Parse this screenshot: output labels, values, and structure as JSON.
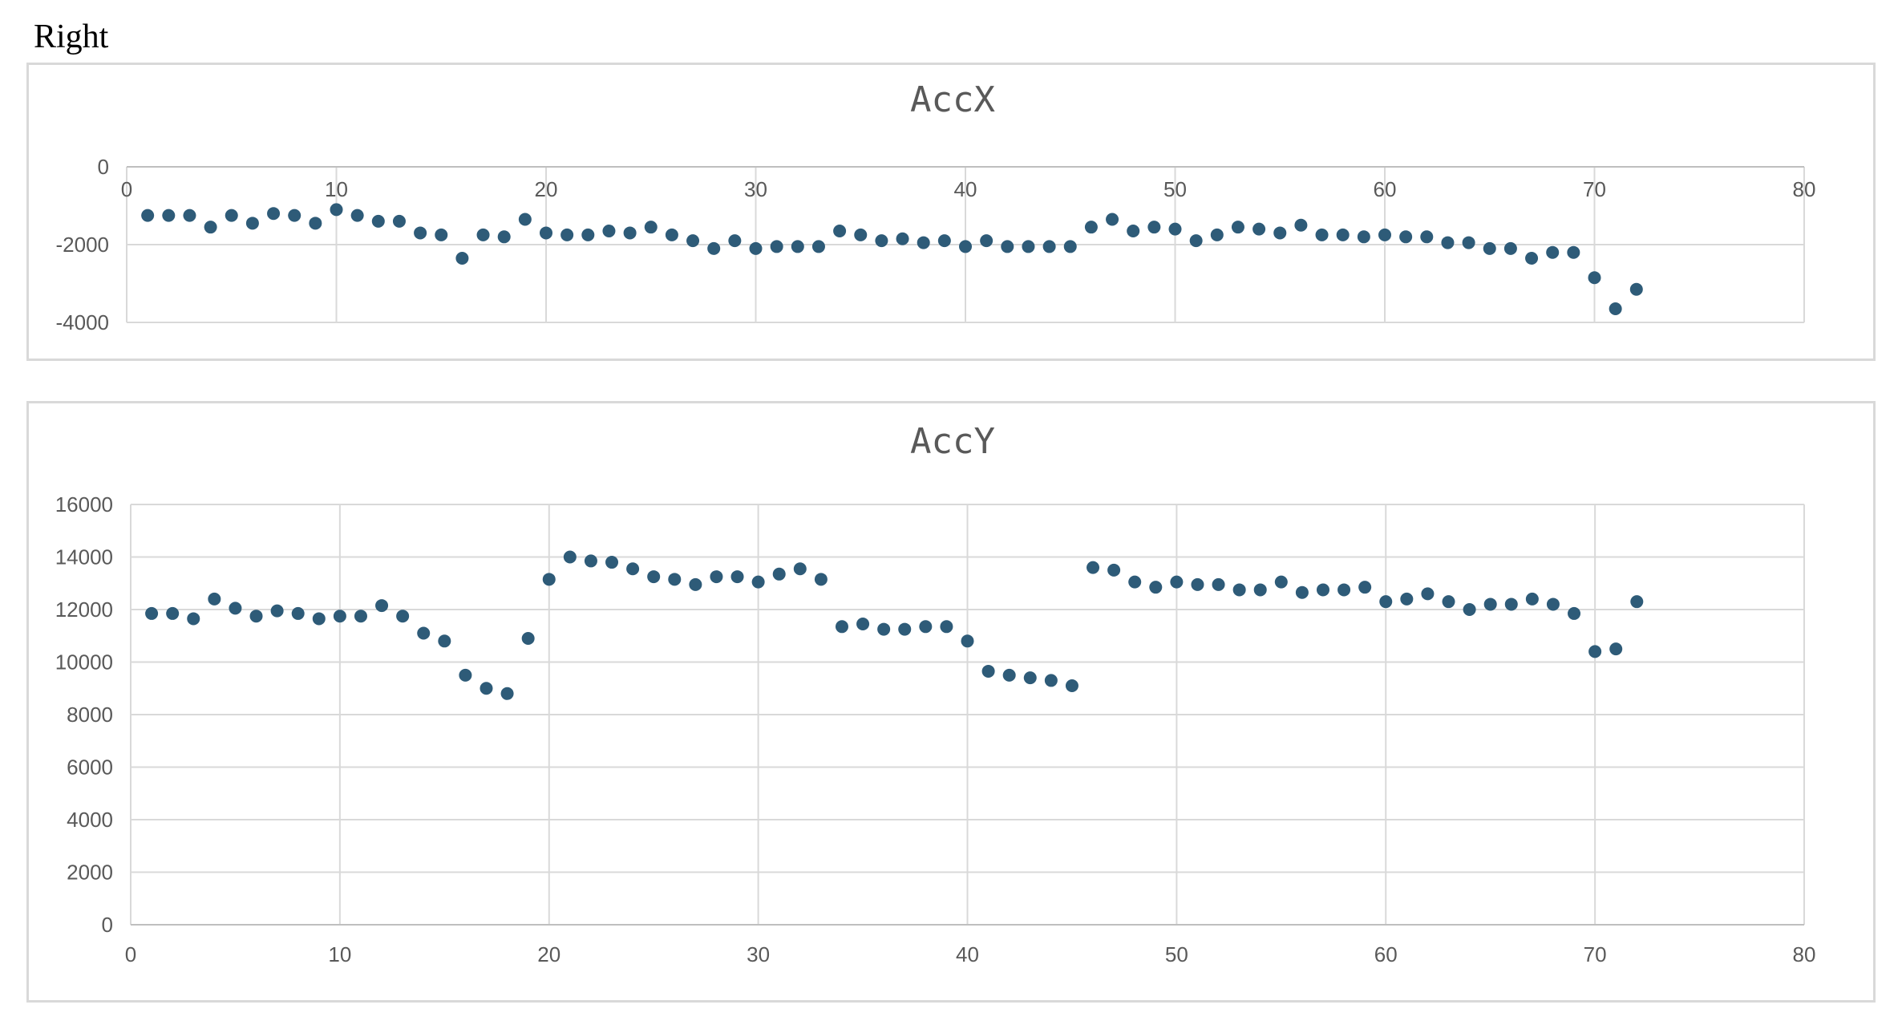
{
  "heading": "Right",
  "colors": {
    "marker": "#2e5b78",
    "grid": "#d9d9d9",
    "text": "#595959"
  },
  "chart_data": [
    {
      "type": "scatter",
      "title": "AccX",
      "xlim": [
        0,
        80
      ],
      "ylim": [
        -4000,
        0
      ],
      "x_ticks": [
        0,
        10,
        20,
        30,
        40,
        50,
        60,
        70,
        80
      ],
      "y_ticks": [
        0,
        -2000,
        -4000
      ],
      "x_axis_at_top": true,
      "grid": true,
      "series": [
        {
          "x": [
            1,
            2,
            3,
            4,
            5,
            6,
            7,
            8,
            9,
            10,
            11,
            12,
            13,
            14,
            15,
            16,
            17,
            18,
            19,
            20,
            21,
            22,
            23,
            24,
            25,
            26,
            27,
            28,
            29,
            30,
            31,
            32,
            33,
            34,
            35,
            36,
            37,
            38,
            39,
            40,
            41,
            42,
            43,
            44,
            45,
            46,
            47,
            48,
            49,
            50,
            51,
            52,
            53,
            54,
            55,
            56,
            57,
            58,
            59,
            60,
            61,
            62,
            63,
            64,
            65,
            66,
            67,
            68,
            69,
            70,
            71,
            72
          ],
          "y": [
            -1250,
            -1250,
            -1250,
            -1550,
            -1250,
            -1450,
            -1200,
            -1250,
            -1450,
            -1100,
            -1250,
            -1400,
            -1400,
            -1700,
            -1750,
            -2350,
            -1750,
            -1800,
            -1350,
            -1700,
            -1750,
            -1750,
            -1650,
            -1700,
            -1550,
            -1750,
            -1900,
            -2100,
            -1900,
            -2100,
            -2050,
            -2050,
            -2050,
            -1650,
            -1750,
            -1900,
            -1850,
            -1950,
            -1900,
            -2050,
            -1900,
            -2050,
            -2050,
            -2050,
            -2050,
            -1550,
            -1350,
            -1650,
            -1550,
            -1600,
            -1900,
            -1750,
            -1550,
            -1600,
            -1700,
            -1500,
            -1750,
            -1750,
            -1800,
            -1750,
            -1800,
            -1800,
            -1950,
            -1950,
            -2100,
            -2100,
            -2350,
            -2200,
            -2200,
            -2850,
            -3650,
            -3150
          ]
        }
      ]
    },
    {
      "type": "scatter",
      "title": "AccY",
      "xlim": [
        0,
        80
      ],
      "ylim": [
        0,
        16000
      ],
      "x_ticks": [
        0,
        10,
        20,
        30,
        40,
        50,
        60,
        70,
        80
      ],
      "y_ticks": [
        0,
        2000,
        4000,
        6000,
        8000,
        10000,
        12000,
        14000,
        16000
      ],
      "x_axis_at_top": false,
      "grid": true,
      "series": [
        {
          "x": [
            1,
            2,
            3,
            4,
            5,
            6,
            7,
            8,
            9,
            10,
            11,
            12,
            13,
            14,
            15,
            16,
            17,
            18,
            19,
            20,
            21,
            22,
            23,
            24,
            25,
            26,
            27,
            28,
            29,
            30,
            31,
            32,
            33,
            34,
            35,
            36,
            37,
            38,
            39,
            40,
            41,
            42,
            43,
            44,
            45,
            46,
            47,
            48,
            49,
            50,
            51,
            52,
            53,
            54,
            55,
            56,
            57,
            58,
            59,
            60,
            61,
            62,
            63,
            64,
            65,
            66,
            67,
            68,
            69,
            70,
            71,
            72
          ],
          "y": [
            11850,
            11850,
            11650,
            12400,
            12050,
            11750,
            11950,
            11850,
            11650,
            11750,
            11750,
            12150,
            11750,
            11100,
            10800,
            9500,
            9000,
            8800,
            10900,
            13150,
            14000,
            13850,
            13800,
            13550,
            13250,
            13150,
            12950,
            13250,
            13250,
            13050,
            13350,
            13550,
            13150,
            11350,
            11450,
            11250,
            11250,
            11350,
            11350,
            10800,
            9650,
            9500,
            9400,
            9300,
            9100,
            13600,
            13500,
            13050,
            12850,
            13050,
            12950,
            12950,
            12750,
            12750,
            13050,
            12650,
            12750,
            12750,
            12850,
            12300,
            12400,
            12600,
            12300,
            12000,
            12200,
            12200,
            12400,
            12200,
            11850,
            10400,
            10500,
            12300
          ]
        }
      ]
    }
  ]
}
